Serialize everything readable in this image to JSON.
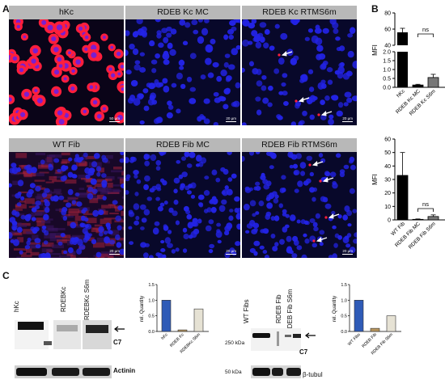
{
  "panel_letters": {
    "a": "A",
    "b": "B",
    "c": "C"
  },
  "microscopy": {
    "row1": [
      {
        "title": "hKc",
        "scale_bar": "50 µm",
        "arrows": 0
      },
      {
        "title": "RDEB Kc MC",
        "scale_bar": "20 µm",
        "arrows": 0
      },
      {
        "title": "RDEB Kc RTMS6m",
        "scale_bar": "20 µm",
        "arrows": 3
      }
    ],
    "row2": [
      {
        "title": "WT Fib",
        "scale_bar": "20 µm",
        "arrows": 0
      },
      {
        "title": "RDEB Fib MC",
        "scale_bar": "20 µm",
        "arrows": 0
      },
      {
        "title": "RDEB Fib RTMS6m",
        "scale_bar": "20 µm",
        "arrows": 4
      }
    ],
    "colors": {
      "nucleus": "#2323e6",
      "c7_signal": "#ff1e3c",
      "background": "#08082a"
    }
  },
  "chart_data": [
    {
      "type": "bar",
      "panel": "B-top",
      "categories": [
        "hKc",
        "RDEB Kc MC",
        "RDEB Kc S6m"
      ],
      "values": [
        56,
        0.13,
        0.55
      ],
      "errors": [
        5,
        0.04,
        0.18
      ],
      "ylabel": "MFI",
      "broken_axis": true,
      "upper_segment": {
        "ylim": [
          40,
          80
        ],
        "ticks": [
          "40",
          "60",
          "80"
        ]
      },
      "lower_segment": {
        "ylim": [
          0,
          2.0
        ],
        "ticks": [
          "0.0",
          "0.5",
          "1.0",
          "1.5",
          "2.0"
        ]
      },
      "significance": "ns",
      "colors": [
        "#000000",
        "#000000",
        "#777777"
      ]
    },
    {
      "type": "bar",
      "panel": "B-bottom",
      "categories": [
        "WT Fib",
        "RDEB Fib MC",
        "RDEB Fib S6m"
      ],
      "values": [
        33,
        0.4,
        2.5
      ],
      "errors": [
        17,
        0.3,
        1.2
      ],
      "ylabel": "MFI",
      "ylim": [
        0,
        60
      ],
      "yticks": [
        "0",
        "10",
        "20",
        "30",
        "40",
        "50",
        "60"
      ],
      "significance": "ns",
      "colors": [
        "#000000",
        "#000000",
        "#777777"
      ]
    },
    {
      "type": "bar",
      "panel": "C-left",
      "categories": [
        "hKc",
        "RDEB Kc",
        "RDEBKc S6m"
      ],
      "values": [
        1.0,
        0.05,
        0.72
      ],
      "ylabel": "rel. Quantity",
      "ylim": [
        0,
        1.5
      ],
      "yticks": [
        "0.0",
        "0.5",
        "1.0",
        "1.5"
      ],
      "colors": [
        "#2f5bb7",
        "#b8965e",
        "#e6e2d4"
      ]
    },
    {
      "type": "bar",
      "panel": "C-right",
      "categories": [
        "WT Fibs",
        "RDEB Fib",
        "RDEB Fib S6m"
      ],
      "values": [
        1.0,
        0.1,
        0.5
      ],
      "ylabel": "rel. Quantity",
      "ylim": [
        0,
        1.5
      ],
      "yticks": [
        "0.0",
        "0.5",
        "1.0",
        "1.5"
      ],
      "colors": [
        "#2f5bb7",
        "#b8965e",
        "#e6e2d4"
      ]
    }
  ],
  "blots": {
    "left": {
      "lanes": [
        "hKc",
        "RDEBKc",
        "RDEBKc S6m"
      ],
      "c7_label": "C7",
      "loading_label": "Actinin"
    },
    "right": {
      "lanes": [
        "WT Fibs",
        "RDEB Fib",
        "RDEB Fib S6m"
      ],
      "mw_top": "250 kDa",
      "mw_bottom": "50 kDa",
      "c7_label": "C7",
      "loading_label": "β-tubul"
    }
  }
}
